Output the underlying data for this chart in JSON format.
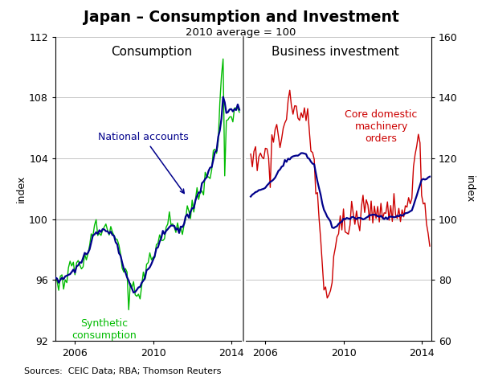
{
  "title": "Japan – Consumption and Investment",
  "subtitle": "2010 average = 100",
  "left_panel_label": "Consumption",
  "right_panel_label": "Business investment",
  "left_ylabel": "index",
  "right_ylabel": "index",
  "sources": "Sources:  CEIC Data; RBA; Thomson Reuters",
  "left_ylim": [
    92,
    112
  ],
  "right_ylim": [
    60,
    160
  ],
  "left_yticks": [
    92,
    96,
    100,
    104,
    108,
    112
  ],
  "right_yticks": [
    60,
    80,
    100,
    120,
    140,
    160
  ],
  "national_accounts_label": "National accounts",
  "synthetic_label": "Synthetic\nconsumption",
  "core_machinery_label": "Core domestic\nmachinery\norders",
  "national_accounts_color": "#00008B",
  "synthetic_color": "#00BB00",
  "core_machinery_color": "#CC0000",
  "business_inv_color": "#00008B",
  "background_color": "#ffffff",
  "grid_color": "#bbbbbb"
}
